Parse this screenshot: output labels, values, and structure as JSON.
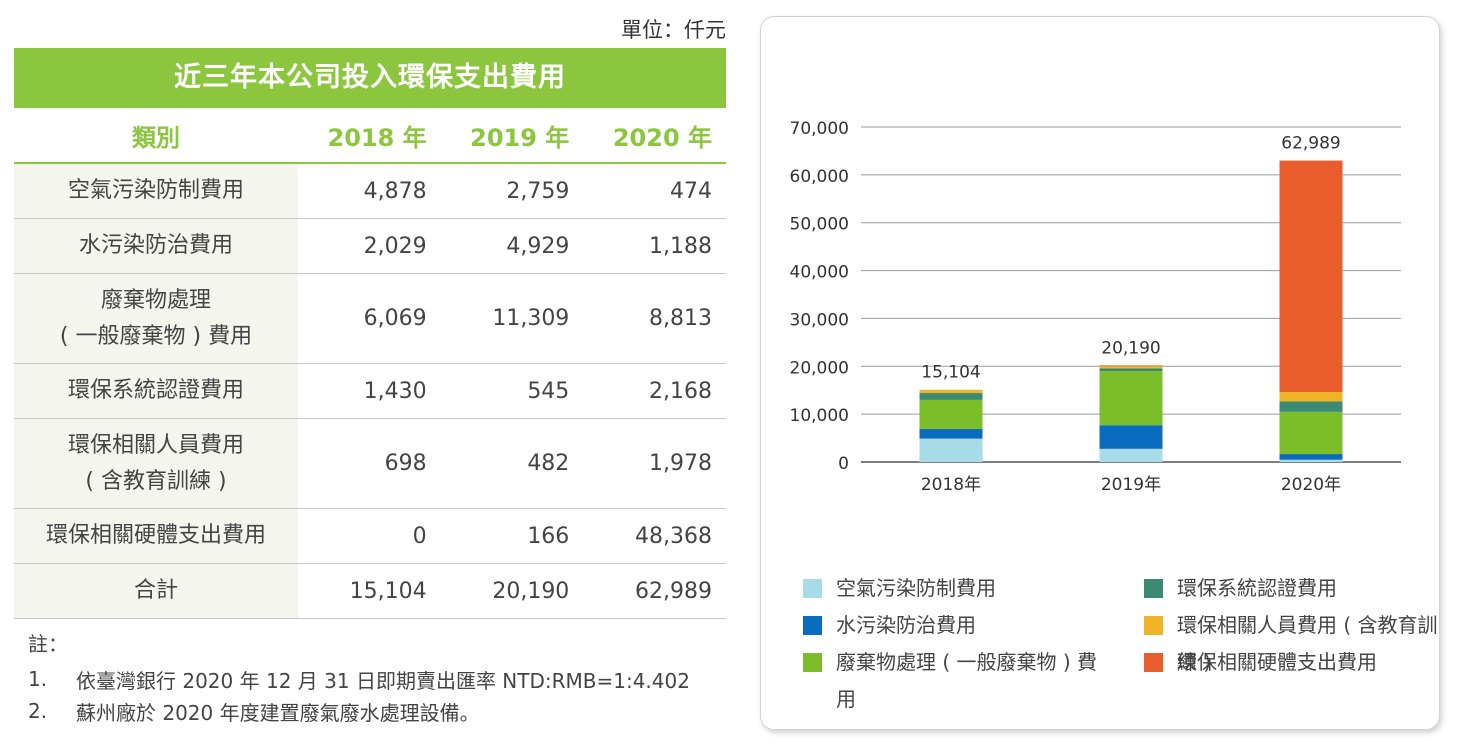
{
  "unit_label": "單位：仟元",
  "table": {
    "title": "近三年本公司投入環保支出費用",
    "headers": [
      "類別",
      "2018 年",
      "2019 年",
      "2020 年"
    ],
    "rows": [
      {
        "label": "空氣污染防制費用",
        "values": [
          "4,878",
          "2,759",
          "474"
        ]
      },
      {
        "label": "水污染防治費用",
        "values": [
          "2,029",
          "4,929",
          "1,188"
        ]
      },
      {
        "label": "廢棄物處理\n( 一般廢棄物 ) 費用",
        "values": [
          "6,069",
          "11,309",
          "8,813"
        ]
      },
      {
        "label": "環保系統認證費用",
        "values": [
          "1,430",
          "545",
          "2,168"
        ]
      },
      {
        "label": "環保相關人員費用\n( 含教育訓練 )",
        "values": [
          "698",
          "482",
          "1,978"
        ]
      },
      {
        "label": "環保相關硬體支出費用",
        "values": [
          "0",
          "166",
          "48,368"
        ]
      },
      {
        "label": "合計",
        "values": [
          "15,104",
          "20,190",
          "62,989"
        ]
      }
    ]
  },
  "notes": {
    "head": "註：",
    "items": [
      {
        "num": "1.",
        "text": "依臺灣銀行 2020 年 12 月 31 日即期賣出匯率 NTD:RMB=1:4.402"
      },
      {
        "num": "2.",
        "text": "蘇州廠於 2020 年度建置廢氣廢水處理設備。"
      }
    ]
  },
  "chart_data": {
    "type": "bar",
    "stacked": true,
    "categories": [
      "2018年",
      "2019年",
      "2020年"
    ],
    "ylim": [
      0,
      70000
    ],
    "yticks": [
      0,
      10000,
      20000,
      30000,
      40000,
      50000,
      60000,
      70000
    ],
    "ytick_labels": [
      "0",
      "10,000",
      "20,000",
      "30,000",
      "40,000",
      "50,000",
      "60,000",
      "70,000"
    ],
    "totals": [
      15104,
      20190,
      62989
    ],
    "total_labels": [
      "15,104",
      "20,190",
      "62,989"
    ],
    "grid": true,
    "legend_position": "bottom",
    "series": [
      {
        "name": "空氣污染防制費用",
        "color": "#a8dbe8",
        "values": [
          4878,
          2759,
          474
        ]
      },
      {
        "name": "水污染防治費用",
        "color": "#0a6cbf",
        "values": [
          2029,
          4929,
          1188
        ]
      },
      {
        "name": "廢棄物處理 ( 一般廢棄物 ) 費用",
        "color": "#7cbd2a",
        "values": [
          6069,
          11309,
          8813
        ]
      },
      {
        "name": "環保系統認證費用",
        "color": "#3b8a73",
        "values": [
          1430,
          545,
          2168
        ]
      },
      {
        "name": "環保相關人員費用 ( 含教育訓練 )",
        "color": "#f0b429",
        "values": [
          698,
          482,
          1978
        ]
      },
      {
        "name": "環保相關硬體支出費用",
        "color": "#e85d2b",
        "values": [
          0,
          166,
          48368
        ]
      }
    ]
  }
}
